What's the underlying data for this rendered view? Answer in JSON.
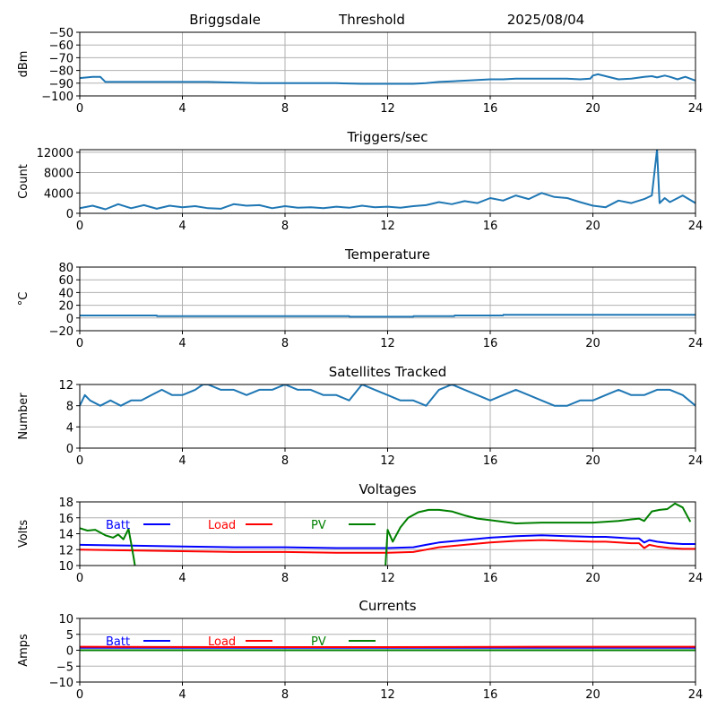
{
  "header": {
    "station": "Briggsdale",
    "mode": "Threshold",
    "date": "2025/08/04"
  },
  "colors": {
    "series": "#1f77b4",
    "batt": "#0000ff",
    "load": "#ff0000",
    "pv": "#008000",
    "grid": "#b0b0b0"
  },
  "chart_data": [
    {
      "id": "signal",
      "type": "line",
      "title": "",
      "ylabel": "dBm",
      "xlim": [
        0,
        24
      ],
      "ylim": [
        -100,
        -50
      ],
      "xticks": [
        0,
        4,
        8,
        12,
        16,
        20,
        24
      ],
      "yticks": [
        -100,
        -90,
        -80,
        -70,
        -60,
        -50
      ],
      "grid": true,
      "series": [
        {
          "color": "#1f77b4",
          "x": [
            0,
            0.5,
            0.8,
            1,
            2,
            3,
            4,
            5,
            6,
            7,
            8,
            9,
            10,
            11,
            12,
            13,
            13.5,
            14,
            14.5,
            15,
            15.5,
            16,
            16.5,
            17,
            17.5,
            18,
            18.5,
            19,
            19.5,
            19.9,
            20,
            20.2,
            20.5,
            20.8,
            21,
            21.5,
            22,
            22.3,
            22.5,
            22.8,
            23,
            23.3,
            23.6,
            24
          ],
          "y": [
            -86,
            -85,
            -85,
            -89,
            -89,
            -89,
            -89,
            -89,
            -89.5,
            -90,
            -90,
            -90,
            -90,
            -90.5,
            -90.5,
            -90.5,
            -90,
            -89,
            -88.5,
            -88,
            -87.5,
            -87,
            -87,
            -86.5,
            -86.5,
            -86.5,
            -86.5,
            -86.5,
            -87,
            -86.5,
            -84,
            -83,
            -84.5,
            -86,
            -87,
            -86.5,
            -85,
            -84.5,
            -85.5,
            -84,
            -85,
            -87,
            -85,
            -88
          ]
        }
      ]
    },
    {
      "id": "triggers",
      "type": "line",
      "title": "Triggers/sec",
      "ylabel": "Count",
      "xlim": [
        0,
        24
      ],
      "ylim": [
        0,
        12500
      ],
      "xticks": [
        0,
        4,
        8,
        12,
        16,
        20,
        24
      ],
      "yticks": [
        0,
        4000,
        8000,
        12000
      ],
      "grid": true,
      "series": [
        {
          "color": "#1f77b4",
          "x": [
            0,
            0.5,
            1,
            1.5,
            2,
            2.5,
            3,
            3.5,
            4,
            4.5,
            5,
            5.5,
            6,
            6.5,
            7,
            7.5,
            8,
            8.5,
            9,
            9.5,
            10,
            10.5,
            11,
            11.5,
            12,
            12.5,
            13,
            13.5,
            14,
            14.5,
            15,
            15.5,
            16,
            16.5,
            17,
            17.5,
            18,
            18.5,
            19,
            19.5,
            20,
            20.5,
            21,
            21.5,
            22,
            22.3,
            22.5,
            22.6,
            22.8,
            23,
            23.5,
            24
          ],
          "y": [
            1000,
            1500,
            800,
            1800,
            1000,
            1600,
            900,
            1500,
            1200,
            1400,
            1000,
            900,
            1800,
            1500,
            1600,
            1000,
            1400,
            1100,
            1200,
            1000,
            1300,
            1100,
            1500,
            1200,
            1300,
            1100,
            1400,
            1600,
            2200,
            1800,
            2400,
            2000,
            3000,
            2500,
            3500,
            2800,
            4000,
            3200,
            3000,
            2200,
            1500,
            1200,
            2500,
            2000,
            2800,
            3500,
            12500,
            2000,
            3000,
            2200,
            3500,
            2000
          ]
        }
      ]
    },
    {
      "id": "temperature",
      "type": "line",
      "title": "Temperature",
      "ylabel": "°C",
      "xlim": [
        0,
        24
      ],
      "ylim": [
        -20,
        80
      ],
      "xticks": [
        0,
        4,
        8,
        12,
        16,
        20,
        24
      ],
      "yticks": [
        -20,
        0,
        20,
        40,
        60,
        80
      ],
      "grid": true,
      "series": [
        {
          "color": "#1f77b4",
          "x": [
            0,
            3,
            3.01,
            10.5,
            10.51,
            13,
            13.01,
            14.6,
            14.61,
            16.5,
            16.51,
            24
          ],
          "y": [
            4,
            4,
            3,
            3,
            2,
            2,
            3,
            3,
            4,
            4,
            5,
            5
          ]
        }
      ]
    },
    {
      "id": "satellites",
      "type": "line",
      "title": "Satellites Tracked",
      "ylabel": "Number",
      "xlim": [
        0,
        24
      ],
      "ylim": [
        0,
        12
      ],
      "xticks": [
        0,
        4,
        8,
        12,
        16,
        20,
        24
      ],
      "yticks": [
        0,
        4,
        8,
        12
      ],
      "grid": true,
      "series": [
        {
          "color": "#1f77b4",
          "x": [
            0,
            0.2,
            0.4,
            0.8,
            1.2,
            1.6,
            2,
            2.4,
            2.8,
            3.2,
            3.6,
            4,
            4.5,
            4.8,
            5,
            5.5,
            6,
            6.5,
            7,
            7.5,
            8,
            8.5,
            9,
            9.5,
            10,
            10.5,
            11,
            11.5,
            12,
            12.5,
            13,
            13.5,
            14,
            14.5,
            15,
            15.5,
            16,
            16.5,
            17,
            17.5,
            18,
            18.5,
            19,
            19.5,
            20,
            20.5,
            21,
            21.5,
            22,
            22.5,
            23,
            23.5,
            24
          ],
          "y": [
            8,
            10,
            9,
            8,
            9,
            8,
            9,
            9,
            10,
            11,
            10,
            10,
            11,
            12,
            12,
            11,
            11,
            10,
            11,
            11,
            12,
            11,
            11,
            10,
            10,
            9,
            12,
            11,
            10,
            9,
            9,
            8,
            11,
            12,
            11,
            10,
            9,
            10,
            11,
            10,
            9,
            8,
            8,
            9,
            9,
            10,
            11,
            10,
            10,
            11,
            11,
            10,
            8
          ]
        }
      ]
    },
    {
      "id": "voltages",
      "type": "line",
      "title": "Voltages",
      "ylabel": "Volts",
      "xlim": [
        0,
        24
      ],
      "ylim": [
        10,
        18
      ],
      "xticks": [
        0,
        4,
        8,
        12,
        16,
        20,
        24
      ],
      "yticks": [
        10,
        12,
        14,
        16,
        18
      ],
      "grid": true,
      "legend": [
        "Batt",
        "Load",
        "PV"
      ],
      "series": [
        {
          "name": "Batt",
          "color": "#0000ff",
          "x": [
            0,
            2,
            4,
            6,
            8,
            10,
            12,
            13,
            13.5,
            14,
            15,
            16,
            17,
            18,
            19,
            20,
            20.5,
            21,
            21.5,
            21.8,
            22,
            22.2,
            22.5,
            23,
            23.5,
            24
          ],
          "y": [
            12.6,
            12.5,
            12.4,
            12.3,
            12.3,
            12.2,
            12.2,
            12.3,
            12.6,
            12.9,
            13.2,
            13.5,
            13.7,
            13.8,
            13.7,
            13.6,
            13.6,
            13.5,
            13.4,
            13.4,
            12.9,
            13.2,
            13.0,
            12.8,
            12.7,
            12.7
          ]
        },
        {
          "name": "Load",
          "color": "#ff0000",
          "x": [
            0,
            2,
            4,
            6,
            8,
            10,
            12,
            13,
            13.5,
            14,
            15,
            16,
            17,
            18,
            19,
            20,
            20.5,
            21,
            21.5,
            21.8,
            22,
            22.2,
            22.5,
            23,
            23.5,
            24
          ],
          "y": [
            12.0,
            11.9,
            11.8,
            11.7,
            11.7,
            11.6,
            11.6,
            11.7,
            12.0,
            12.3,
            12.6,
            12.9,
            13.1,
            13.2,
            13.1,
            13.0,
            13.0,
            12.9,
            12.8,
            12.8,
            12.2,
            12.6,
            12.4,
            12.2,
            12.1,
            12.1
          ]
        },
        {
          "name": "PV",
          "color": "#008000",
          "x": [
            0,
            0.3,
            0.6,
            1,
            1.3,
            1.5,
            1.7,
            1.9,
            2.0,
            2.1,
            2.2,
            11.9,
            12.0,
            12.2,
            12.5,
            12.8,
            13.2,
            13.6,
            14,
            14.5,
            15,
            15.5,
            16,
            17,
            18,
            19,
            20,
            21,
            21.5,
            21.8,
            22,
            22.3,
            22.6,
            22.9,
            23.2,
            23.5,
            23.8
          ],
          "y": [
            14.7,
            14.4,
            14.5,
            13.8,
            13.5,
            13.9,
            13.3,
            14.6,
            12.8,
            11.0,
            9.0,
            9.0,
            14.5,
            13.0,
            14.8,
            16.0,
            16.7,
            17.0,
            17.0,
            16.8,
            16.3,
            15.9,
            15.7,
            15.3,
            15.4,
            15.4,
            15.4,
            15.6,
            15.8,
            15.9,
            15.6,
            16.8,
            17.0,
            17.1,
            17.8,
            17.3,
            15.5
          ]
        }
      ]
    },
    {
      "id": "currents",
      "type": "line",
      "title": "Currents",
      "ylabel": "Amps",
      "xlim": [
        0,
        24
      ],
      "ylim": [
        -10,
        10
      ],
      "xticks": [
        0,
        4,
        8,
        12,
        16,
        20,
        24
      ],
      "yticks": [
        -10,
        -5,
        0,
        5,
        10
      ],
      "grid": true,
      "legend": [
        "Batt",
        "Load",
        "PV"
      ],
      "series": [
        {
          "name": "Batt",
          "color": "#0000ff",
          "x": [
            0,
            24
          ],
          "y": [
            0.8,
            0.8
          ]
        },
        {
          "name": "Load",
          "color": "#ff0000",
          "x": [
            0,
            6,
            12,
            18,
            24
          ],
          "y": [
            1.1,
            1.0,
            1.0,
            1.1,
            1.1
          ]
        },
        {
          "name": "PV",
          "color": "#008000",
          "x": [
            0,
            24
          ],
          "y": [
            0,
            0
          ]
        }
      ]
    }
  ]
}
